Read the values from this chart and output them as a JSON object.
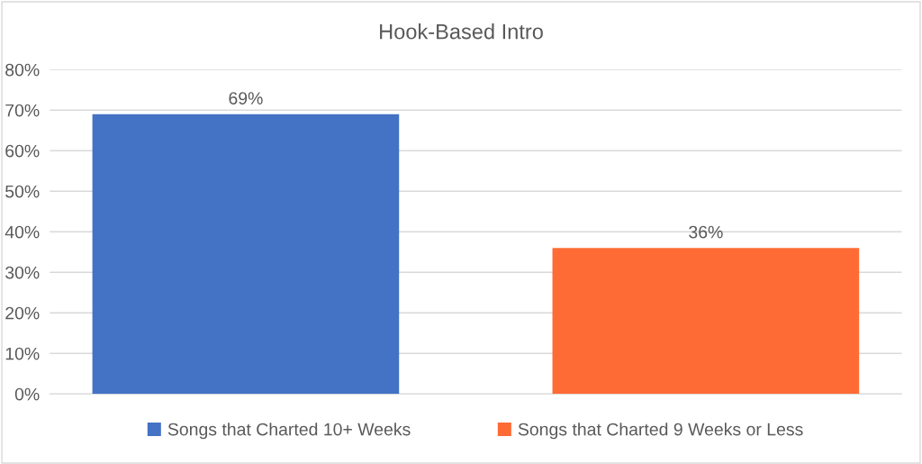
{
  "chart_data": {
    "type": "bar",
    "title": "Hook-Based Intro",
    "categories": [
      null
    ],
    "series": [
      {
        "name": "Songs that Charted 10+ Weeks",
        "color": "#4472c4",
        "values": [
          69
        ],
        "value_labels": [
          "69%"
        ]
      },
      {
        "name": "Songs that Charted 9 Weeks or Less",
        "color": "#ff6b35",
        "values": [
          36
        ],
        "value_labels": [
          "36%"
        ]
      }
    ],
    "ylim": [
      0,
      80
    ],
    "yticks": [
      {
        "value": 0,
        "label": "0%"
      },
      {
        "value": 10,
        "label": "10%"
      },
      {
        "value": 20,
        "label": "20%"
      },
      {
        "value": 30,
        "label": "30%"
      },
      {
        "value": 40,
        "label": "40%"
      },
      {
        "value": 50,
        "label": "50%"
      },
      {
        "value": 60,
        "label": "60%"
      },
      {
        "value": 70,
        "label": "70%"
      },
      {
        "value": 80,
        "label": "80%"
      }
    ],
    "grid": "y",
    "legend": "bottom"
  }
}
